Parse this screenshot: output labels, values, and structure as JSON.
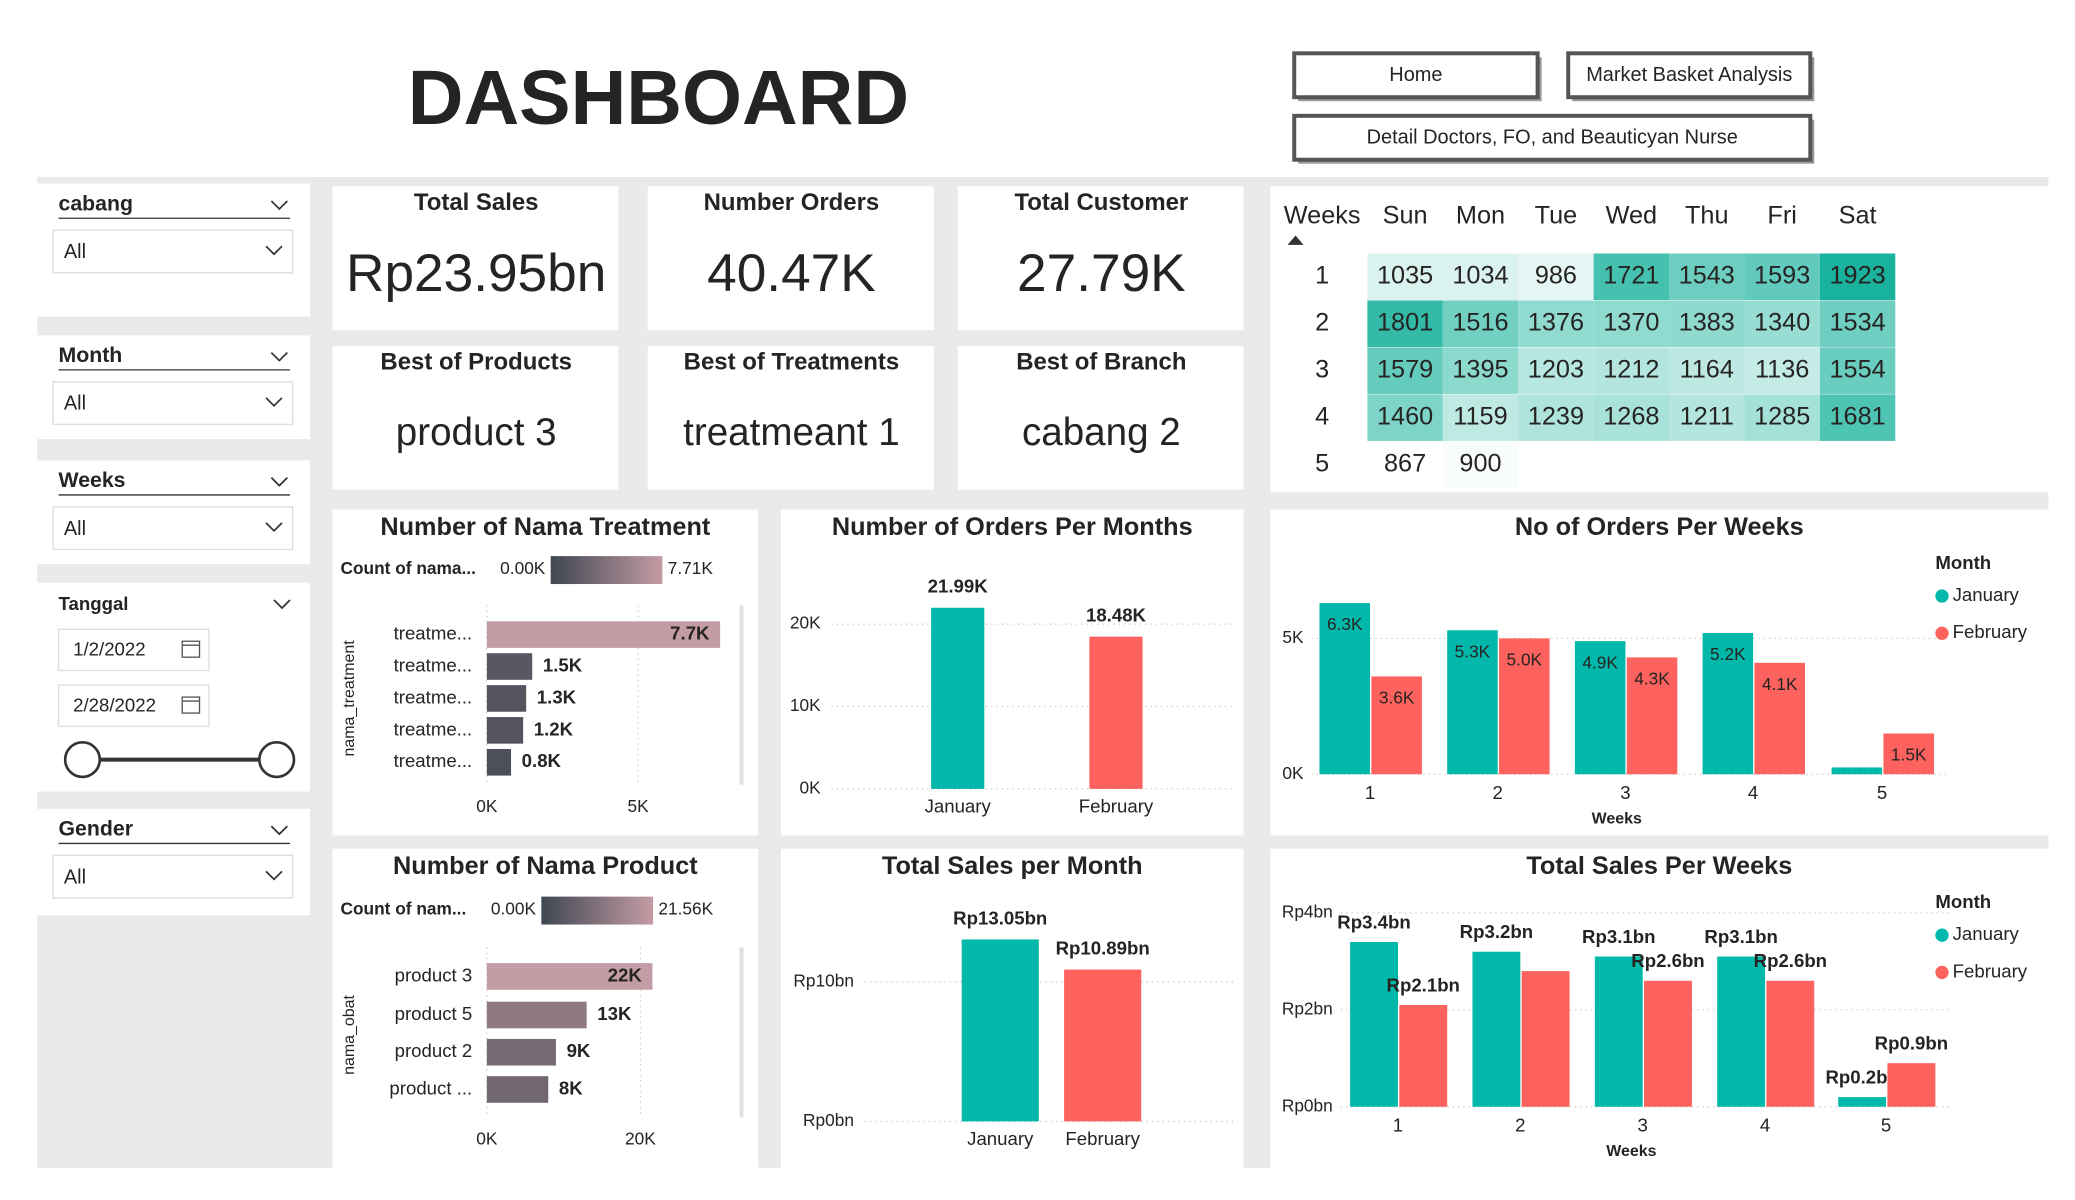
{
  "header": {
    "title": "DASHBOARD"
  },
  "nav": [
    "Home",
    "Market Basket Analysis",
    "Detail Doctors, FO, and Beauticyan Nurse"
  ],
  "slicers": [
    {
      "title": "cabang",
      "value": "All"
    },
    {
      "title": "Month",
      "value": "All"
    },
    {
      "title": "Weeks",
      "value": "All"
    },
    {
      "title": "Gender",
      "value": "All"
    }
  ],
  "date_slicer": {
    "title": "Tanggal",
    "start": "1/2/2022",
    "end": "2/28/2022"
  },
  "cards": [
    {
      "label": "Total Sales",
      "value": "Rp23.95bn"
    },
    {
      "label": "Number Orders",
      "value": "40.47K"
    },
    {
      "label": "Total Customer",
      "value": "27.79K"
    },
    {
      "label": "Best of Products",
      "value": "product 3"
    },
    {
      "label": "Best of Treatments",
      "value": "treatmeant 1"
    },
    {
      "label": "Best of Branch",
      "value": "cabang 2"
    }
  ],
  "matrix": {
    "columns": [
      "Weeks",
      "Sun",
      "Mon",
      "Tue",
      "Wed",
      "Thu",
      "Fri",
      "Sat"
    ],
    "rows": [
      [
        1,
        1035,
        1034,
        986,
        1721,
        1543,
        1593,
        1923
      ],
      [
        2,
        1801,
        1516,
        1376,
        1370,
        1383,
        1340,
        1534
      ],
      [
        3,
        1579,
        1395,
        1203,
        1212,
        1164,
        1136,
        1554
      ],
      [
        4,
        1460,
        1159,
        1239,
        1268,
        1211,
        1285,
        1681
      ],
      [
        5,
        867,
        900
      ]
    ],
    "color_low": "#ffffff",
    "color_high": "#19b29d"
  },
  "chart_data": [
    {
      "type": "barh",
      "title": "Number of Nama Treatment",
      "y_label": "nama_treatment",
      "legend_title": "Count of nama...",
      "legend_min": {
        "value": 0,
        "label": "0.00K"
      },
      "legend_max": {
        "value": 7710,
        "label": "7.71K"
      },
      "color_min": "#3f4752",
      "color_max": "#c49ca5",
      "categories": [
        "treatme...",
        "treatme...",
        "treatme...",
        "treatme...",
        "treatme..."
      ],
      "values": [
        7710,
        1500,
        1300,
        1200,
        800
      ],
      "value_labels": [
        "7.7K",
        "1.5K",
        "1.3K",
        "1.2K",
        "0.8K"
      ],
      "xlim": [
        0,
        8000
      ],
      "xticks": [
        {
          "value": 0,
          "label": "0K"
        },
        {
          "value": 5000,
          "label": "5K"
        }
      ],
      "grid": true
    },
    {
      "type": "bar",
      "title": "Number of Orders Per Months",
      "categories": [
        "January",
        "February"
      ],
      "values": [
        21990,
        18480
      ],
      "value_labels": [
        "21.99K",
        "18.48K"
      ],
      "colors": [
        "#01b8aa",
        "#fd625e"
      ],
      "ylim": [
        0,
        26000
      ],
      "yticks": [
        {
          "value": 0,
          "label": "0K"
        },
        {
          "value": 10000,
          "label": "10K"
        },
        {
          "value": 20000,
          "label": "20K"
        }
      ],
      "grid": true
    },
    {
      "type": "bar",
      "title": "No of Orders Per Weeks",
      "x_label": "Weeks",
      "legend_title": "Month",
      "legend": "right",
      "label_position": "inside",
      "categories": [
        "1",
        "2",
        "3",
        "4",
        "5"
      ],
      "series": [
        {
          "name": "January",
          "color": "#01b8aa",
          "values": [
            6300,
            5300,
            4900,
            5200,
            250
          ],
          "value_labels": [
            "6.3K",
            "5.3K",
            "4.9K",
            "5.2K",
            null
          ]
        },
        {
          "name": "February",
          "color": "#fd625e",
          "values": [
            3600,
            5000,
            4300,
            4100,
            1500
          ],
          "value_labels": [
            "3.6K",
            "5.0K",
            "4.3K",
            "4.1K",
            "1.5K"
          ]
        }
      ],
      "ylim": [
        0,
        7000
      ],
      "yticks": [
        {
          "value": 0,
          "label": "0K"
        },
        {
          "value": 5000,
          "label": "5K"
        }
      ],
      "grid": true
    },
    {
      "type": "barh",
      "title": "Number of Nama Product",
      "y_label": "nama_obat",
      "legend_title": "Count of nam...",
      "legend_min": {
        "value": 0,
        "label": "0.00K"
      },
      "legend_max": {
        "value": 21560,
        "label": "21.56K"
      },
      "color_min": "#3f4752",
      "color_max": "#c49ca5",
      "categories": [
        "product 3",
        "product 5",
        "product 2",
        "product ..."
      ],
      "values": [
        21560,
        13000,
        9000,
        8000
      ],
      "value_labels": [
        "22K",
        "13K",
        "9K",
        "8K"
      ],
      "xlim": [
        0,
        31000
      ],
      "xticks": [
        {
          "value": 0,
          "label": "0K"
        },
        {
          "value": 20000,
          "label": "20K"
        }
      ],
      "grid": true
    },
    {
      "type": "bar",
      "title": "Total Sales per Month",
      "categories": [
        "January",
        "February"
      ],
      "values": [
        13050000000,
        10890000000
      ],
      "value_labels": [
        "Rp13.05bn",
        "Rp10.89bn"
      ],
      "colors": [
        "#01b8aa",
        "#fd625e"
      ],
      "ylim": [
        0,
        14500000000
      ],
      "yticks": [
        {
          "value": 0,
          "label": "Rp0bn"
        },
        {
          "value": 10000000000,
          "label": "Rp10bn"
        }
      ],
      "grid": true
    },
    {
      "type": "bar",
      "title": "Total Sales Per Weeks",
      "x_label": "Weeks",
      "legend_title": "Month",
      "legend": "right",
      "label_position": "outside",
      "categories": [
        "1",
        "2",
        "3",
        "4",
        "5"
      ],
      "series": [
        {
          "name": "January",
          "color": "#01b8aa",
          "values": [
            3400000000,
            3200000000,
            3100000000,
            3100000000,
            200000000
          ],
          "value_labels": [
            "Rp3.4bn",
            "Rp3.2bn",
            "Rp3.1bn",
            "Rp3.1bn",
            "Rp0.2bn"
          ]
        },
        {
          "name": "February",
          "color": "#fd625e",
          "values": [
            2100000000,
            2800000000,
            2600000000,
            2600000000,
            900000000
          ],
          "value_labels": [
            "Rp2.1bn",
            null,
            "Rp2.6bn",
            "Rp2.6bn",
            "Rp0.9bn"
          ]
        }
      ],
      "ylim": [
        0,
        4200000000
      ],
      "yticks": [
        {
          "value": 0,
          "label": "Rp0bn"
        },
        {
          "value": 2000000000,
          "label": "Rp2bn"
        },
        {
          "value": 4000000000,
          "label": "Rp4bn"
        }
      ],
      "grid": true
    }
  ]
}
